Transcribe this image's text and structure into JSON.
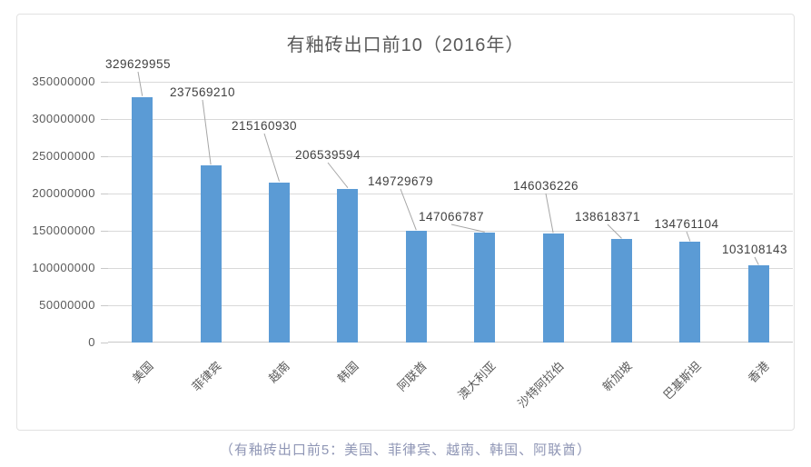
{
  "chart_data": {
    "type": "bar",
    "title": "有釉砖出口前10（2016年）",
    "categories": [
      "美国",
      "菲律宾",
      "越南",
      "韩国",
      "阿联酋",
      "澳大利亚",
      "沙特阿拉伯",
      "新加坡",
      "巴基斯坦",
      "香港"
    ],
    "values": [
      329629955,
      237569210,
      215160930,
      206539594,
      149729679,
      147066787,
      146036226,
      138618371,
      134761104,
      103108143
    ],
    "xlabel": "",
    "ylabel": "",
    "ylim": [
      0,
      350000000
    ],
    "ytick_step": 50000000,
    "ytick_labels": [
      "0",
      "50000000",
      "100000000",
      "150000000",
      "200000000",
      "250000000",
      "300000000",
      "350000000"
    ],
    "grid": true,
    "legend": false,
    "data_labels": true,
    "category_label_rotation_deg": -45,
    "bar_color": "#5B9BD5",
    "gridline_color": "#D9D9D9",
    "axis_line_color": "#C8C8C8",
    "axis_text_color": "#595959",
    "data_label_color": "#404040",
    "leader_line_color": "#A6A6A6",
    "title_color": "#595959",
    "chart_border_color": "#E2E2E2"
  },
  "caption": {
    "text": "（有釉砖出口前5：美国、菲律宾、越南、韩国、阿联酋）",
    "color": "#8F96B5"
  }
}
